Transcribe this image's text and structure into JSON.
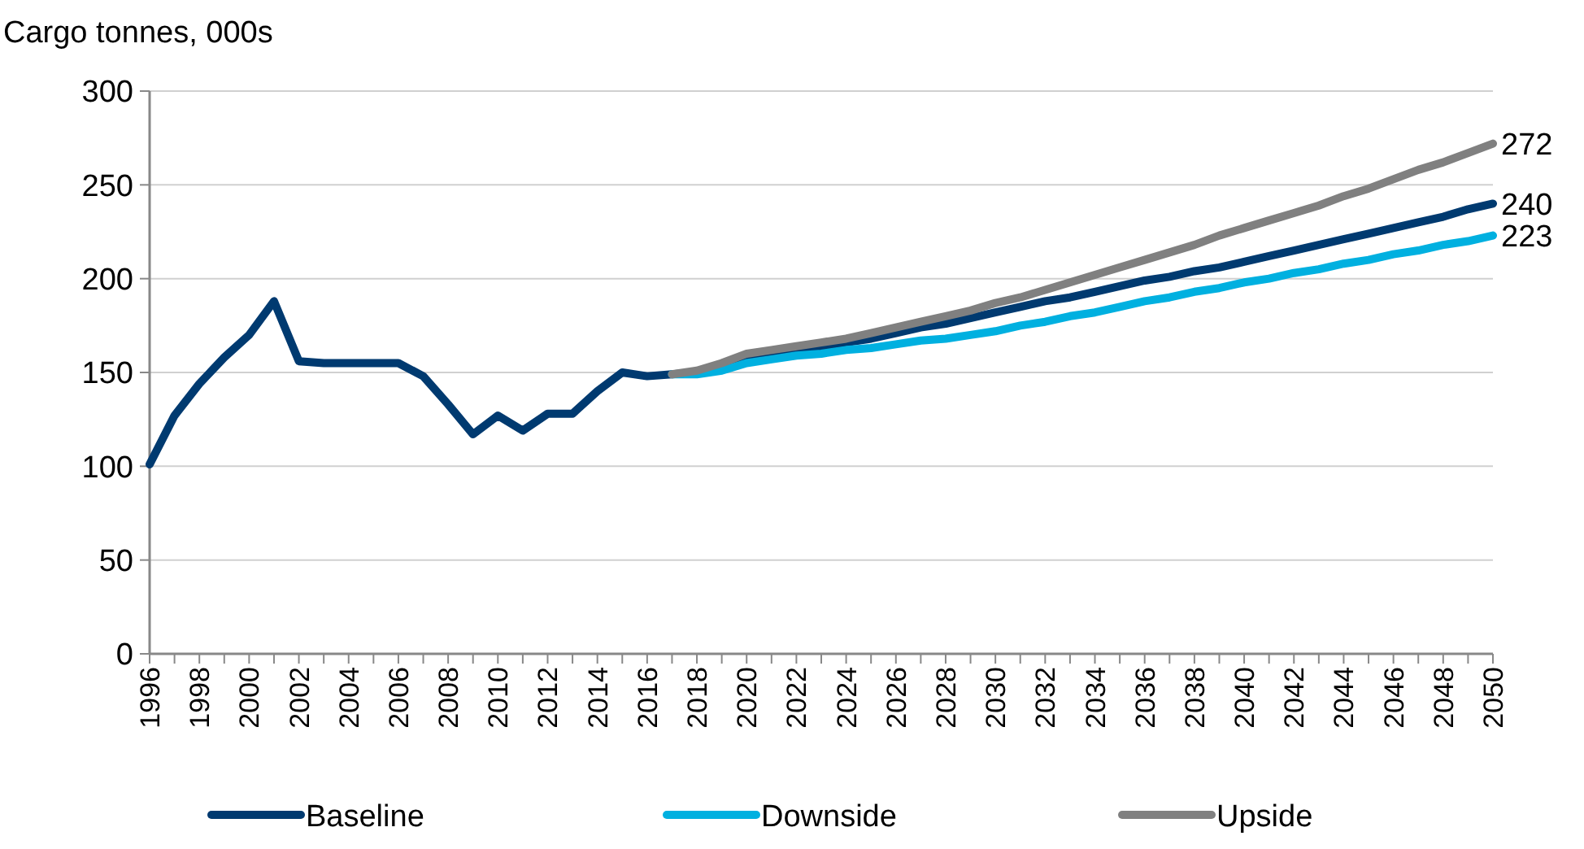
{
  "chart_data": {
    "type": "line",
    "ylabel": "Cargo tonnes, 000s",
    "categories": [
      "1996",
      null,
      "1998",
      null,
      "2000",
      null,
      "2002",
      null,
      "2004",
      null,
      "2006",
      null,
      "2008",
      null,
      "2010",
      null,
      "2012",
      null,
      "2014",
      null,
      "2016",
      null,
      "2018",
      null,
      "2020",
      null,
      "2022",
      null,
      "2024",
      null,
      "2026",
      null,
      "2028",
      null,
      "2030",
      null,
      "2032",
      null,
      "2034",
      null,
      "2036",
      null,
      "2038",
      null,
      "2040",
      null,
      "2042",
      null,
      "2044",
      null,
      "2046",
      null,
      "2048",
      null,
      "2050"
    ],
    "series": [
      {
        "name": "Baseline",
        "color": "#003a70",
        "values": [
          101,
          127,
          144,
          158,
          170,
          188,
          156,
          155,
          155,
          155,
          155,
          148,
          133,
          117,
          127,
          119,
          128,
          128,
          140,
          150,
          148,
          149,
          150,
          153,
          157,
          160,
          162,
          164,
          166,
          168,
          171,
          174,
          176,
          179,
          182,
          185,
          188,
          190,
          193,
          196,
          199,
          201,
          204,
          206,
          209,
          212,
          215,
          218,
          221,
          224,
          227,
          230,
          233,
          237,
          240
        ]
      },
      {
        "name": "Downside",
        "color": "#00b0e0",
        "values": [
          null,
          null,
          null,
          null,
          null,
          null,
          null,
          null,
          null,
          null,
          null,
          null,
          null,
          null,
          null,
          null,
          null,
          null,
          null,
          null,
          null,
          149,
          149,
          151,
          155,
          157,
          159,
          160,
          162,
          163,
          165,
          167,
          168,
          170,
          172,
          175,
          177,
          180,
          182,
          185,
          188,
          190,
          193,
          195,
          198,
          200,
          203,
          205,
          208,
          210,
          213,
          215,
          218,
          220,
          223
        ]
      },
      {
        "name": "Upside",
        "color": "#808080",
        "values": [
          null,
          null,
          null,
          null,
          null,
          null,
          null,
          null,
          null,
          null,
          null,
          null,
          null,
          null,
          null,
          null,
          null,
          null,
          null,
          null,
          null,
          149,
          151,
          155,
          160,
          162,
          164,
          166,
          168,
          171,
          174,
          177,
          180,
          183,
          187,
          190,
          194,
          198,
          202,
          206,
          210,
          214,
          218,
          223,
          227,
          231,
          235,
          239,
          244,
          248,
          253,
          258,
          262,
          267,
          272
        ]
      }
    ],
    "annotations": [
      {
        "text": "272",
        "x": "2050",
        "y": 272
      },
      {
        "text": "240",
        "x": "2050",
        "y": 240
      },
      {
        "text": "223",
        "x": "2050",
        "y": 223
      }
    ],
    "ylim": [
      0,
      300
    ],
    "yticks": [
      0,
      50,
      100,
      150,
      200,
      250,
      300
    ],
    "grid": "y",
    "legend": "bottom",
    "line_style": "solid"
  }
}
